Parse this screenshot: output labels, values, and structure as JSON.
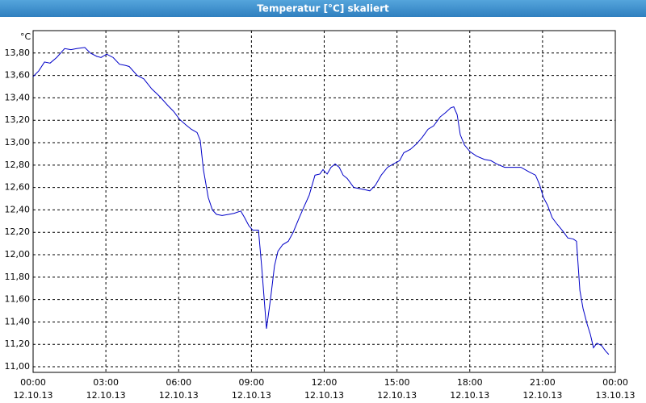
{
  "chart_data": {
    "type": "line",
    "title": "Temperatur [°C] skaliert",
    "y_unit": "°C",
    "x": [
      0,
      0.23,
      0.47,
      0.7,
      0.97,
      1.3,
      1.56,
      1.8,
      2.13,
      2.36,
      2.63,
      2.8,
      3.03,
      3.3,
      3.56,
      3.8,
      3.96,
      4.29,
      4.56,
      4.89,
      5.23,
      5.56,
      5.79,
      6.03,
      6.29,
      6.52,
      6.76,
      6.89,
      7.02,
      7.22,
      7.39,
      7.56,
      7.79,
      8.06,
      8.29,
      8.56,
      8.72,
      8.89,
      9.05,
      9.29,
      9.42,
      9.62,
      9.79,
      9.95,
      10.09,
      10.29,
      10.52,
      10.72,
      10.95,
      11.15,
      11.38,
      11.62,
      11.82,
      11.95,
      12.12,
      12.28,
      12.45,
      12.62,
      12.78,
      12.95,
      13.22,
      13.45,
      13.68,
      13.88,
      14.11,
      14.35,
      14.61,
      14.85,
      15.11,
      15.28,
      15.55,
      15.81,
      16.05,
      16.28,
      16.51,
      16.78,
      17.01,
      17.21,
      17.34,
      17.48,
      17.61,
      17.78,
      18.01,
      18.28,
      18.61,
      18.87,
      19.11,
      19.44,
      19.77,
      20.11,
      20.44,
      20.71,
      20.87,
      21.04,
      21.21,
      21.4,
      21.61,
      21.84,
      22.04,
      22.27,
      22.4,
      22.54,
      22.67,
      22.84,
      22.97,
      23.1,
      23.24,
      23.43,
      23.6,
      23.73
    ],
    "series": [
      {
        "name": "Temperatur",
        "color": "#0000c8",
        "values": [
          13.59,
          13.64,
          13.72,
          13.71,
          13.76,
          13.84,
          13.83,
          13.84,
          13.85,
          13.8,
          13.77,
          13.76,
          13.79,
          13.76,
          13.7,
          13.69,
          13.68,
          13.6,
          13.57,
          13.48,
          13.41,
          13.33,
          13.28,
          13.21,
          13.16,
          13.12,
          13.09,
          13.02,
          12.76,
          12.51,
          12.4,
          12.36,
          12.35,
          12.36,
          12.37,
          12.39,
          12.33,
          12.26,
          12.22,
          12.22,
          11.9,
          11.34,
          11.61,
          11.9,
          12.03,
          12.09,
          12.12,
          12.2,
          12.32,
          12.42,
          12.53,
          12.71,
          12.72,
          12.76,
          12.72,
          12.78,
          12.81,
          12.78,
          12.71,
          12.68,
          12.6,
          12.59,
          12.58,
          12.57,
          12.62,
          12.71,
          12.78,
          12.81,
          12.84,
          12.91,
          12.94,
          12.99,
          13.05,
          13.12,
          13.15,
          13.23,
          13.27,
          13.31,
          13.32,
          13.25,
          13.07,
          12.98,
          12.92,
          12.88,
          12.85,
          12.84,
          12.81,
          12.78,
          12.78,
          12.78,
          12.74,
          12.71,
          12.63,
          12.51,
          12.44,
          12.33,
          12.27,
          12.21,
          12.15,
          12.14,
          12.12,
          11.68,
          11.52,
          11.38,
          11.29,
          11.17,
          11.21,
          11.19,
          11.14,
          11.11
        ]
      }
    ],
    "xlim": [
      0,
      24
    ],
    "ylim": [
      10.95,
      14.0
    ],
    "xticks": [
      {
        "value": 0,
        "label": "00:00",
        "date": "12.10.13"
      },
      {
        "value": 3,
        "label": "03:00",
        "date": "12.10.13"
      },
      {
        "value": 6,
        "label": "06:00",
        "date": "12.10.13"
      },
      {
        "value": 9,
        "label": "09:00",
        "date": "12.10.13"
      },
      {
        "value": 12,
        "label": "12:00",
        "date": "12.10.13"
      },
      {
        "value": 15,
        "label": "15:00",
        "date": "12.10.13"
      },
      {
        "value": 18,
        "label": "18:00",
        "date": "12.10.13"
      },
      {
        "value": 21,
        "label": "21:00",
        "date": "12.10.13"
      },
      {
        "value": 24,
        "label": "00:00",
        "date": "13.10.13"
      }
    ],
    "yticks": [
      {
        "value": 11.0,
        "label": "11,00"
      },
      {
        "value": 11.2,
        "label": "11,20"
      },
      {
        "value": 11.4,
        "label": "11,40"
      },
      {
        "value": 11.6,
        "label": "11,60"
      },
      {
        "value": 11.8,
        "label": "11,80"
      },
      {
        "value": 12.0,
        "label": "12,00"
      },
      {
        "value": 12.2,
        "label": "12,20"
      },
      {
        "value": 12.4,
        "label": "12,40"
      },
      {
        "value": 12.6,
        "label": "12,60"
      },
      {
        "value": 12.8,
        "label": "12,80"
      },
      {
        "value": 13.0,
        "label": "13,00"
      },
      {
        "value": 13.2,
        "label": "13,20"
      },
      {
        "value": 13.4,
        "label": "13,40"
      },
      {
        "value": 13.6,
        "label": "13,60"
      },
      {
        "value": 13.8,
        "label": "13,80"
      }
    ],
    "grid": true
  }
}
